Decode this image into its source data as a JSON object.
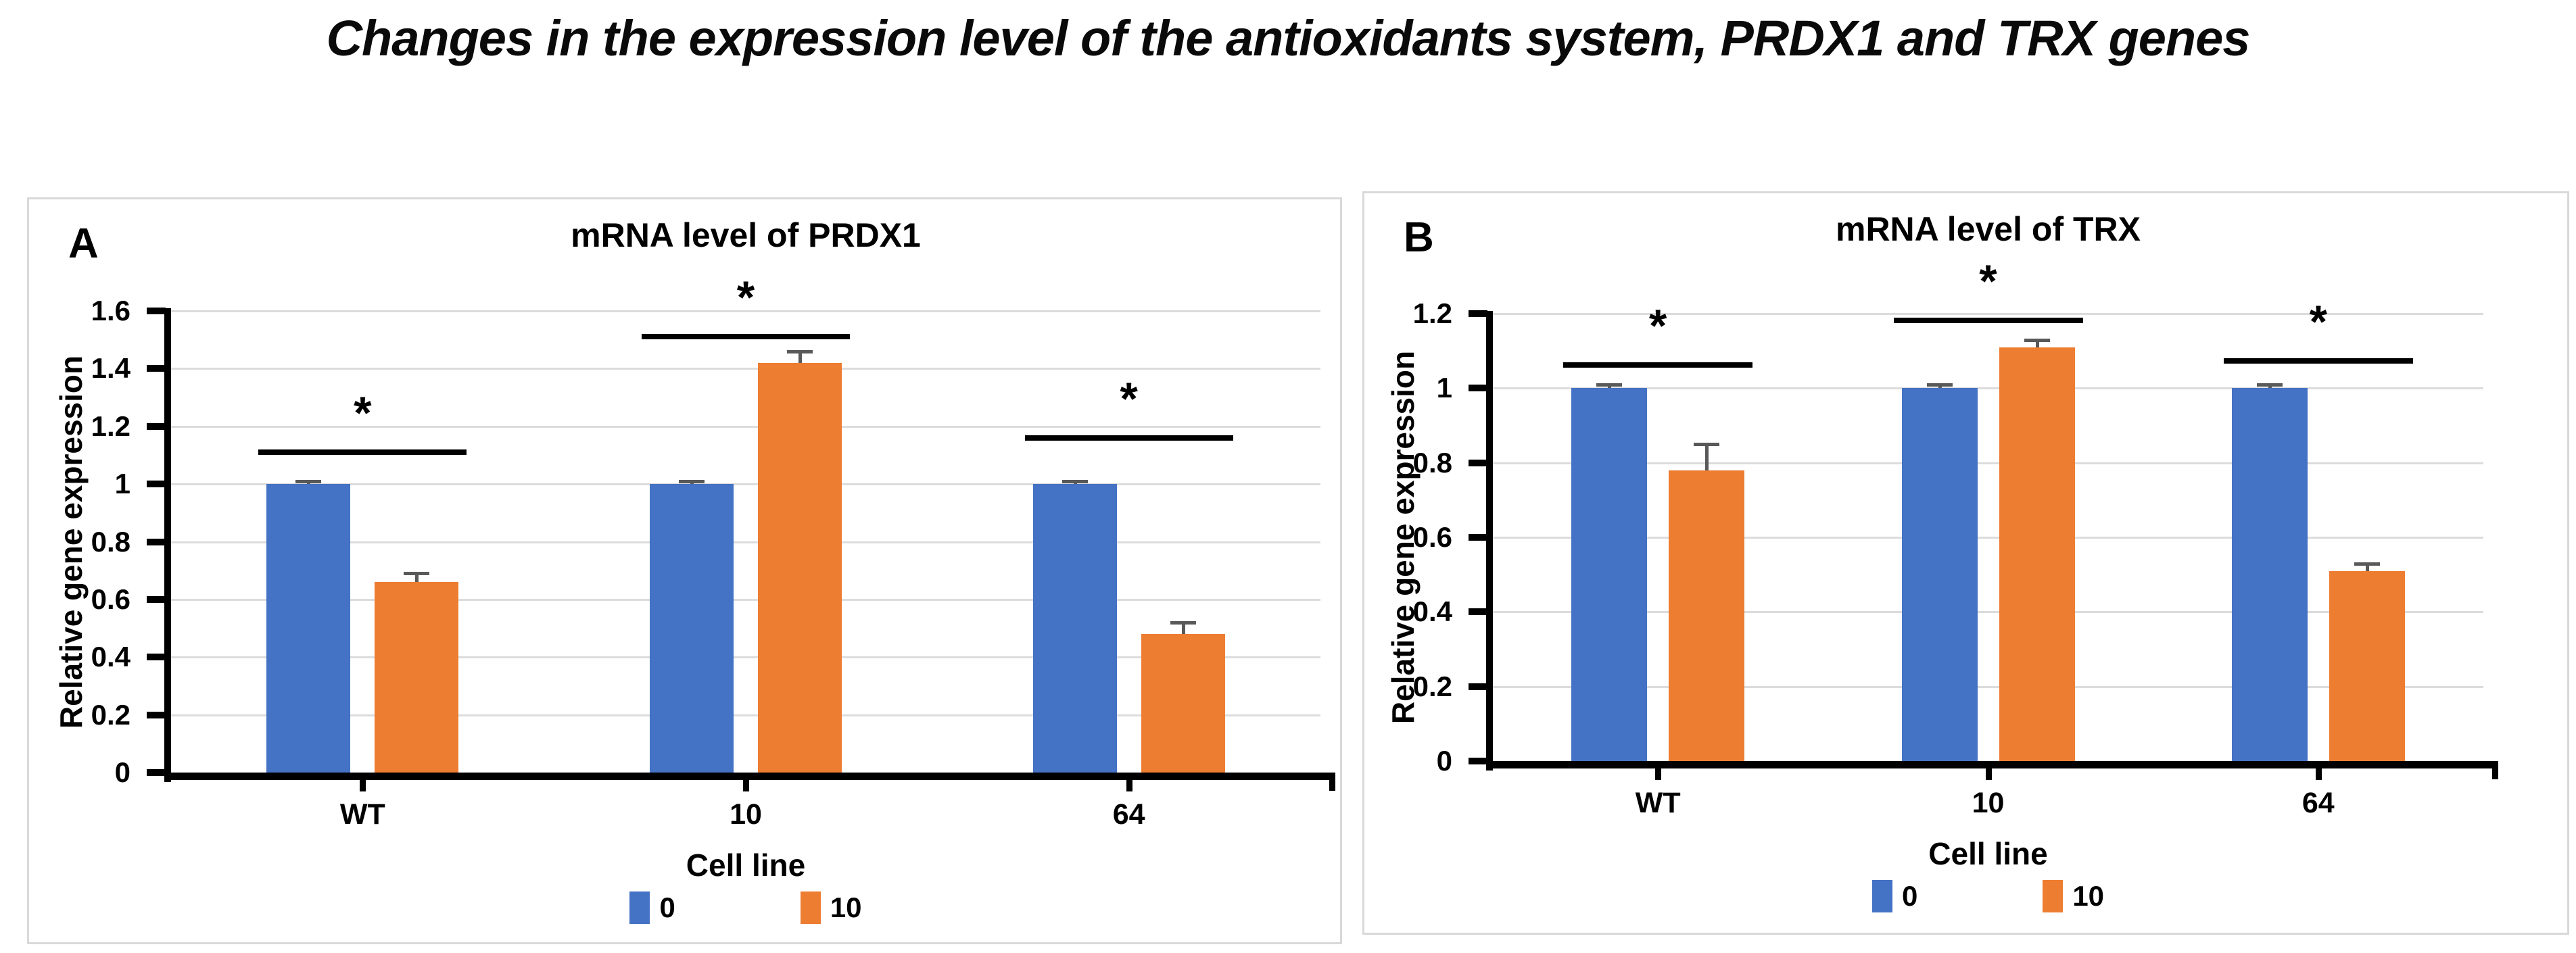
{
  "figure_title": "Changes in the expression level of the antioxidants system, PRDX1 and TRX genes",
  "colors": {
    "series_0": "#4472C4",
    "series_10": "#ED7D31",
    "gridline": "#DCDCDC",
    "axis": "#000000",
    "error_bar": "#595959",
    "panel_border": "#D9D9D9"
  },
  "chart_data": [
    {
      "panel": "A",
      "type": "bar",
      "title": "mRNA level of PRDX1",
      "xlabel": "Cell line",
      "ylabel": "Relative gene expression",
      "categories": [
        "WT",
        "10",
        "64"
      ],
      "series": [
        {
          "name": "0",
          "color": "#4472C4",
          "values": [
            1.0,
            1.0,
            1.0
          ],
          "errors": [
            0.01,
            0.01,
            0.01
          ]
        },
        {
          "name": "10",
          "color": "#ED7D31",
          "values": [
            0.66,
            1.42,
            0.48
          ],
          "errors": [
            0.03,
            0.04,
            0.04
          ]
        }
      ],
      "ylim": [
        0,
        1.6
      ],
      "yticks": [
        "0",
        "0.2",
        "0.4",
        "0.6",
        "0.8",
        "1",
        "1.2",
        "1.4",
        "1.6"
      ],
      "grid": true,
      "legend_position": "bottom",
      "significance": [
        {
          "group": 0,
          "y": 1.12,
          "label": "*"
        },
        {
          "group": 1,
          "y": 1.52,
          "label": "*"
        },
        {
          "group": 2,
          "y": 1.17,
          "label": "*"
        }
      ]
    },
    {
      "panel": "B",
      "type": "bar",
      "title": "mRNA level of TRX",
      "xlabel": "Cell line",
      "ylabel": "Relative gene expression",
      "categories": [
        "WT",
        "10",
        "64"
      ],
      "series": [
        {
          "name": "0",
          "color": "#4472C4",
          "values": [
            1.0,
            1.0,
            1.0
          ],
          "errors": [
            0.01,
            0.01,
            0.01
          ]
        },
        {
          "name": "10",
          "color": "#ED7D31",
          "values": [
            0.78,
            1.11,
            0.51
          ],
          "errors": [
            0.07,
            0.02,
            0.02
          ]
        }
      ],
      "ylim": [
        0,
        1.2
      ],
      "yticks": [
        "0",
        "0.2",
        "0.4",
        "0.6",
        "0.8",
        "1",
        "1.2"
      ],
      "grid": true,
      "legend_position": "bottom",
      "significance": [
        {
          "group": 0,
          "y": 1.07,
          "label": "*"
        },
        {
          "group": 1,
          "y": 1.19,
          "label": "*"
        },
        {
          "group": 2,
          "y": 1.08,
          "label": "*"
        }
      ]
    }
  ]
}
